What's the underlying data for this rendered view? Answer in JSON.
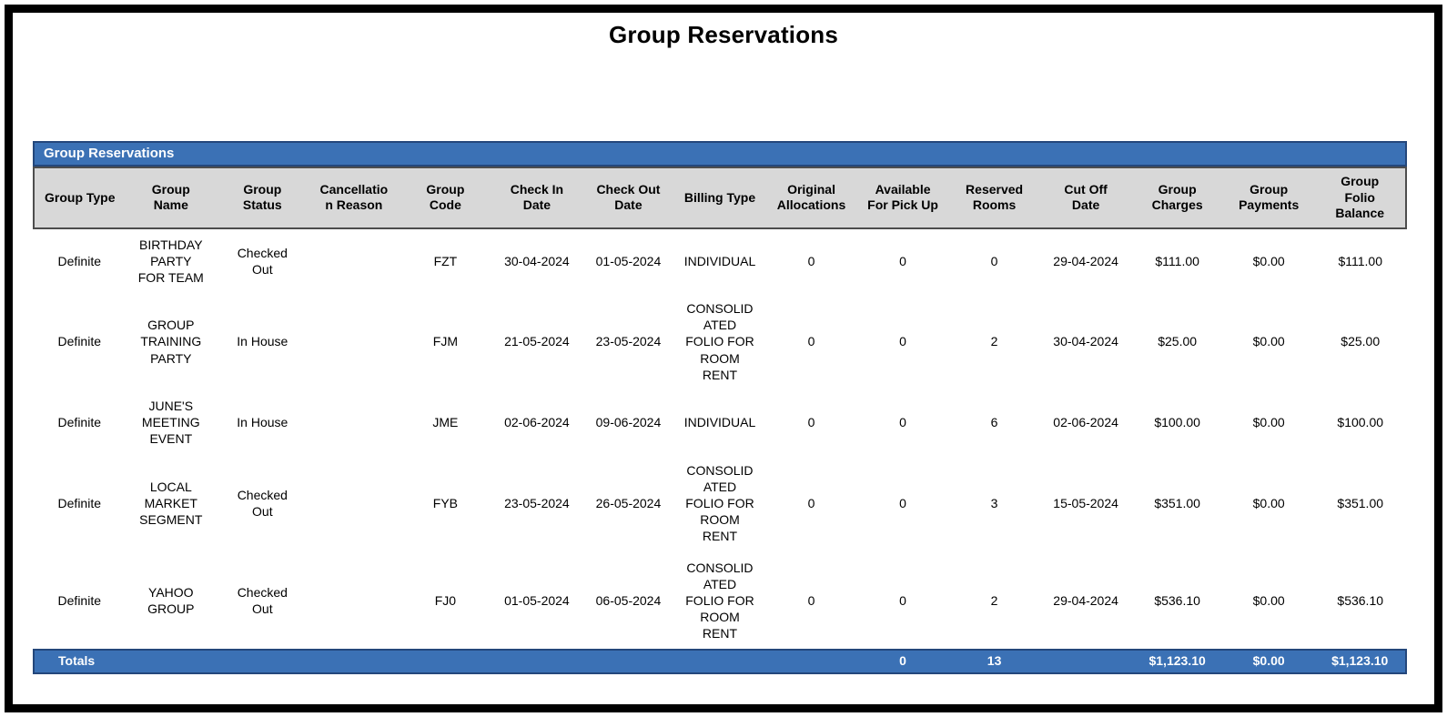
{
  "page": {
    "title": "Group Reservations"
  },
  "report": {
    "section_title": "Group Reservations",
    "colors": {
      "accent_blue": "#3B71B5",
      "accent_blue_dark": "#24477B",
      "header_gray": "#D8D8D8",
      "header_border": "#4D4D4D"
    },
    "columns": [
      "Group Type",
      "Group\nName",
      "Group\nStatus",
      "Cancellatio\nn Reason",
      "Group\nCode",
      "Check In\nDate",
      "Check Out\nDate",
      "Billing Type",
      "Original\nAllocations",
      "Available\nFor Pick Up",
      "Reserved\nRooms",
      "Cut Off\nDate",
      "Group\nCharges",
      "Group\nPayments",
      "Group\nFolio\nBalance"
    ],
    "rows": [
      [
        "Definite",
        "BIRTHDAY\nPARTY\nFOR TEAM",
        "Checked\nOut",
        "",
        "FZT",
        "30-04-2024",
        "01-05-2024",
        "INDIVIDUAL",
        "0",
        "0",
        "0",
        "29-04-2024",
        "$111.00",
        "$0.00",
        "$111.00"
      ],
      [
        "Definite",
        "GROUP\nTRAINING\nPARTY",
        "In House",
        "",
        "FJM",
        "21-05-2024",
        "23-05-2024",
        "CONSOLID\nATED\nFOLIO FOR\nROOM\nRENT",
        "0",
        "0",
        "2",
        "30-04-2024",
        "$25.00",
        "$0.00",
        "$25.00"
      ],
      [
        "Definite",
        "JUNE'S\nMEETING\nEVENT",
        "In House",
        "",
        "JME",
        "02-06-2024",
        "09-06-2024",
        "INDIVIDUAL",
        "0",
        "0",
        "6",
        "02-06-2024",
        "$100.00",
        "$0.00",
        "$100.00"
      ],
      [
        "Definite",
        "LOCAL\nMARKET\nSEGMENT",
        "Checked\nOut",
        "",
        "FYB",
        "23-05-2024",
        "26-05-2024",
        "CONSOLID\nATED\nFOLIO FOR\nROOM\nRENT",
        "0",
        "0",
        "3",
        "15-05-2024",
        "$351.00",
        "$0.00",
        "$351.00"
      ],
      [
        "Definite",
        "YAHOO\nGROUP",
        "Checked\nOut",
        "",
        "FJ0",
        "01-05-2024",
        "06-05-2024",
        "CONSOLID\nATED\nFOLIO FOR\nROOM\nRENT",
        "0",
        "0",
        "2",
        "29-04-2024",
        "$536.10",
        "$0.00",
        "$536.10"
      ]
    ],
    "totals": {
      "cells": [
        "Totals",
        "",
        "",
        "",
        "",
        "",
        "",
        "",
        "",
        "0",
        "13",
        "",
        "$1,123.10",
        "$0.00",
        "$1,123.10"
      ]
    }
  }
}
